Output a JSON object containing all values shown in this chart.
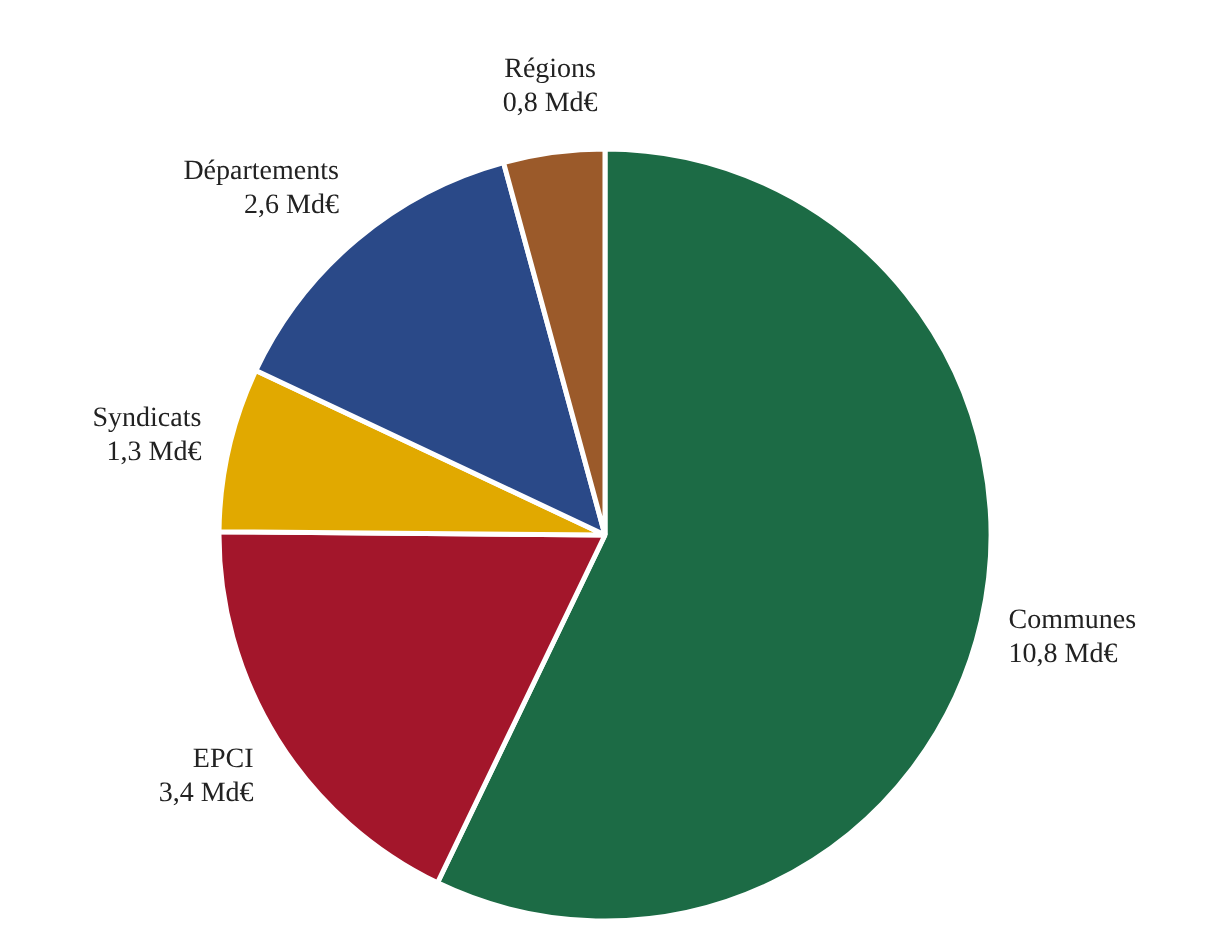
{
  "chart_data": {
    "type": "pie",
    "categories": [
      "Communes",
      "EPCI",
      "Syndicats",
      "Départements",
      "Régions"
    ],
    "values": [
      10.8,
      3.4,
      1.3,
      2.6,
      0.8
    ],
    "value_labels": [
      "10,8 Md€",
      "3,4 Md€",
      "1,3 Md€",
      "2,6 Md€",
      "0,8 Md€"
    ],
    "colors": [
      "#1c6b45",
      "#a3162b",
      "#e1a900",
      "#2a4988",
      "#9b5a2a"
    ]
  }
}
